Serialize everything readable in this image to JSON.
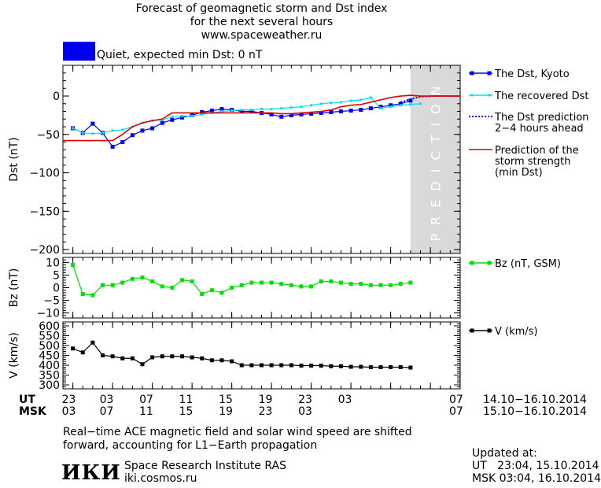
{
  "header": {
    "title_line1": "Forecast of geomagnetic storm and Dst index",
    "title_line2": "for the next several hours",
    "url": "www.spaceweather.ru",
    "status": "Quiet, expected min Dst: 0 nT",
    "status_color": "#0000ee"
  },
  "chart_data": [
    {
      "type": "line",
      "ylabel": "Dst (nT)",
      "ylim": [
        -205,
        40
      ],
      "yticks": [
        -200,
        -150,
        -100,
        -50,
        0
      ],
      "ytick_labels": [
        "−200",
        "−150",
        "−100",
        "−50",
        "0"
      ],
      "annotation": "PREDICTION",
      "prediction_region_hours": [
        34,
        39
      ],
      "series": [
        {
          "name": "The Dst, Kyoto",
          "color": "#0000ee",
          "x": [
            0,
            1,
            2,
            3,
            4,
            5,
            6,
            7,
            8,
            9,
            10,
            11,
            12,
            13,
            14,
            15,
            16,
            17,
            18,
            19,
            20,
            21,
            22,
            23,
            24,
            25,
            26,
            27,
            28,
            29,
            30,
            31,
            32,
            33,
            34
          ],
          "values": [
            -42,
            -48,
            -36,
            -48,
            -66,
            -60,
            -51,
            -45,
            -42,
            -35,
            -31,
            -28,
            -25,
            -21,
            -19,
            -17,
            -18,
            -20,
            -20,
            -22,
            -24,
            -27,
            -25,
            -24,
            -23,
            -22,
            -21,
            -20,
            -19,
            -18,
            -16,
            -14,
            -12,
            -10,
            -6
          ]
        },
        {
          "name": "The recovered Dst",
          "color": "#00e0ee",
          "x": [
            0,
            1,
            2,
            3,
            4,
            5,
            6,
            7,
            8,
            9,
            10,
            11,
            12,
            13,
            14,
            15,
            16,
            17,
            18,
            19,
            20,
            21,
            22,
            23,
            24,
            25,
            26,
            27,
            28,
            29,
            30,
            31,
            32,
            33,
            34,
            35
          ],
          "values": [
            -42,
            -48,
            -49,
            -48,
            -45,
            -44,
            -40,
            -35,
            -32,
            -31,
            -27,
            -26,
            -26,
            -24,
            -22,
            -20,
            -19,
            -18,
            -18,
            -17,
            -17,
            -16,
            -15,
            -14,
            -12,
            -10,
            -9,
            -8,
            -6,
            -5,
            -2,
            -16,
            -14,
            -12,
            -11,
            -10
          ]
        },
        {
          "name": "The Dst prediction",
          "label_line2": "2−4 hours ahead",
          "color": "#0000cc",
          "dotted": true,
          "x": [
            33,
            34,
            35,
            36,
            37,
            38,
            39
          ],
          "values": [
            -8,
            -4,
            -1,
            0,
            0,
            0,
            0
          ]
        },
        {
          "name": "Prediction of the",
          "label_line2": "storm strength",
          "label_line3": "(min Dst)",
          "color": "#dd0000",
          "step": true,
          "x": [
            -1,
            3,
            4,
            5,
            6,
            7,
            8,
            9,
            10,
            11,
            12,
            13,
            14,
            15,
            16,
            17,
            18,
            19,
            20,
            21,
            22,
            23,
            24,
            25,
            26,
            27,
            28,
            29,
            30,
            31,
            32,
            33,
            34,
            35,
            36,
            39
          ],
          "values": [
            -58,
            -58,
            -58,
            -50,
            -40,
            -35,
            -32,
            -30,
            -22,
            -22,
            -22,
            -22,
            -22,
            -22,
            -22,
            -22,
            -22,
            -22,
            -22,
            -23,
            -23,
            -22,
            -21,
            -20,
            -18,
            -14,
            -12,
            -11,
            -8,
            -5,
            -2,
            0,
            1,
            0,
            0,
            0
          ]
        }
      ]
    },
    {
      "type": "line",
      "ylabel": "Bz (nT)",
      "ylim": [
        -12,
        12
      ],
      "yticks": [
        -10,
        -5,
        0,
        5,
        10
      ],
      "ytick_labels": [
        "−10",
        "−5",
        "0",
        "5",
        "10"
      ],
      "series": [
        {
          "name": "Bz (nT, GSM)",
          "color": "#00dd00",
          "x": [
            0,
            1,
            2,
            3,
            4,
            5,
            6,
            7,
            8,
            9,
            10,
            11,
            12,
            13,
            14,
            15,
            16,
            17,
            18,
            19,
            20,
            21,
            22,
            23,
            24,
            25,
            26,
            27,
            28,
            29,
            30,
            31,
            32,
            33,
            34
          ],
          "values": [
            9,
            -2.5,
            -3,
            1,
            1,
            2,
            3.5,
            4,
            2.5,
            0.5,
            0,
            3,
            2.5,
            -2.5,
            -1,
            -2,
            0,
            1,
            2,
            2,
            2,
            1.5,
            1,
            0.5,
            0.5,
            2.5,
            2.5,
            2,
            1.5,
            1.5,
            1,
            1,
            1,
            1.5,
            2
          ]
        }
      ]
    },
    {
      "type": "line",
      "ylabel": "V (km/s)",
      "ylim": [
        280,
        620
      ],
      "yticks": [
        300,
        350,
        400,
        450,
        500,
        550,
        600
      ],
      "ytick_labels": [
        "300",
        "350",
        "400",
        "450",
        "500",
        "550",
        "600"
      ],
      "series": [
        {
          "name": "V (km/s)",
          "color": "#000000",
          "x": [
            0,
            1,
            2,
            3,
            4,
            5,
            6,
            7,
            8,
            9,
            10,
            11,
            12,
            13,
            14,
            15,
            16,
            17,
            18,
            19,
            20,
            21,
            22,
            23,
            24,
            25,
            26,
            27,
            28,
            29,
            30,
            31,
            32,
            33,
            34
          ],
          "values": [
            485,
            465,
            515,
            450,
            445,
            435,
            435,
            405,
            440,
            445,
            445,
            445,
            440,
            435,
            425,
            425,
            420,
            400,
            400,
            400,
            400,
            400,
            400,
            398,
            398,
            398,
            395,
            395,
            392,
            392,
            390,
            390,
            390,
            390,
            388
          ]
        }
      ]
    }
  ],
  "axis": {
    "x_range": [
      -1,
      39
    ],
    "tick_hours": [
      0,
      4,
      8,
      12,
      16,
      20,
      24,
      28,
      32,
      36
    ],
    "ut_label": "UT",
    "msk_label": "MSK",
    "ut_ticks": [
      "23",
      "03",
      "07",
      "11",
      "15",
      "19",
      "23",
      "03",
      "07"
    ],
    "msk_ticks": [
      "03",
      "07",
      "11",
      "15",
      "19",
      "23",
      "03",
      "07"
    ],
    "ut_range": "14.10−16.10.2014",
    "msk_range": "15.10−16.10.2014"
  },
  "notes": {
    "line1": "Real−time ACE magnetic field and solar wind speed are shifted",
    "line2": "forward, accounting for L1−Earth propagation"
  },
  "footer": {
    "logo_text": "ИКИ",
    "institute": "Space Research Institute RAS",
    "site": "iki.cosmos.ru",
    "updated_label": "Updated at:",
    "updated_ut": "UT   23:04, 15.10.2014",
    "updated_msk": "MSK 03:04, 16.10.2014"
  }
}
